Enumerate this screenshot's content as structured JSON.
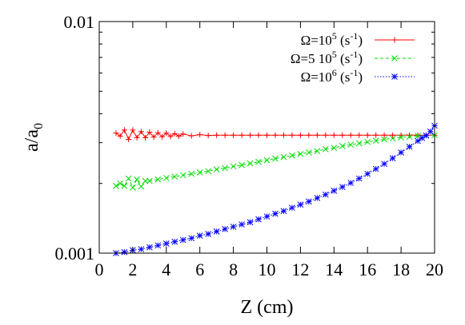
{
  "chart_data": {
    "type": "line",
    "title": "",
    "xlabel": "Z (cm)",
    "ylabel": {
      "main": "a/a",
      "sub": "0"
    },
    "xlim": [
      0,
      20
    ],
    "ylim": [
      0.001,
      0.01
    ],
    "yscale": "log",
    "grid": false,
    "legend_position": "top-right",
    "x_ticks": [
      0,
      2,
      4,
      6,
      8,
      10,
      12,
      14,
      16,
      18,
      20
    ],
    "x_tick_labels": [
      "0",
      "2",
      "4",
      "6",
      "8",
      "10",
      "12",
      "14",
      "16",
      "18",
      "20"
    ],
    "y_ticks": [
      0.001,
      0.01
    ],
    "y_tick_labels": [
      "0.001",
      "0.01"
    ],
    "series": [
      {
        "name": "Ω=10^5 (s^-1)",
        "legend": {
          "pre": "Ω=10",
          "sup1": "5",
          "mid": " (s",
          "sup2": "-1",
          "post": ")"
        },
        "color": "#ff0000",
        "marker": "plus",
        "line": "solid",
        "x": [
          1.0,
          1.25,
          1.5,
          1.75,
          2.0,
          2.25,
          2.5,
          2.75,
          3.0,
          3.25,
          3.5,
          3.75,
          4.0,
          4.25,
          4.5,
          4.75,
          5.0,
          5.5,
          6.0,
          6.5,
          7.0,
          7.5,
          8.0,
          8.5,
          9.0,
          9.5,
          10.0,
          10.5,
          11.0,
          11.5,
          12.0,
          12.5,
          13.0,
          13.5,
          14.0,
          14.5,
          15.0,
          15.5,
          16.0,
          16.5,
          17.0,
          17.5,
          18.0,
          18.5,
          19.0,
          19.5,
          20.0
        ],
        "y": [
          0.0033,
          0.0032,
          0.0034,
          0.0031,
          0.0034,
          0.00315,
          0.00335,
          0.00315,
          0.00333,
          0.00317,
          0.00331,
          0.00318,
          0.0033,
          0.00319,
          0.00328,
          0.0032,
          0.00327,
          0.00321,
          0.00325,
          0.00322,
          0.00323,
          0.00323,
          0.00323,
          0.00323,
          0.00323,
          0.00323,
          0.00323,
          0.00323,
          0.00323,
          0.00323,
          0.00323,
          0.00323,
          0.00323,
          0.00323,
          0.00323,
          0.00323,
          0.00323,
          0.00323,
          0.00323,
          0.00323,
          0.00323,
          0.00323,
          0.00323,
          0.00323,
          0.00323,
          0.00323,
          0.00323
        ]
      },
      {
        "name": "Ω=5 10^5 (s^-1)",
        "legend": {
          "pre": "Ω=5 10",
          "sup1": "5",
          "mid": " (s",
          "sup2": "-1",
          "post": ")"
        },
        "color": "#00dd00",
        "marker": "cross",
        "line": "dashed",
        "x": [
          1.0,
          1.25,
          1.5,
          1.75,
          2.0,
          2.25,
          2.5,
          2.75,
          3.0,
          3.5,
          4.0,
          4.5,
          5.0,
          5.5,
          6.0,
          6.5,
          7.0,
          7.5,
          8.0,
          8.5,
          9.0,
          9.5,
          10.0,
          10.5,
          11.0,
          11.5,
          12.0,
          12.5,
          13.0,
          13.5,
          14.0,
          14.5,
          15.0,
          15.5,
          16.0,
          16.5,
          17.0,
          17.5,
          18.0,
          18.5,
          19.0,
          19.5,
          20.0
        ],
        "y": [
          0.00195,
          0.002,
          0.00195,
          0.0021,
          0.00192,
          0.00208,
          0.00194,
          0.00205,
          0.00205,
          0.00208,
          0.00211,
          0.00214,
          0.00217,
          0.0022,
          0.00223,
          0.00226,
          0.0023,
          0.00233,
          0.00237,
          0.0024,
          0.00244,
          0.00248,
          0.00252,
          0.00256,
          0.0026,
          0.00264,
          0.00268,
          0.00272,
          0.00276,
          0.00281,
          0.00285,
          0.0029,
          0.00294,
          0.00298,
          0.00302,
          0.00306,
          0.0031,
          0.00313,
          0.00316,
          0.00318,
          0.00321,
          0.00322,
          0.00323
        ]
      },
      {
        "name": "Ω=10^6 (s^-1)",
        "legend": {
          "pre": "Ω=10",
          "sup1": "6",
          "mid": " (s",
          "sup2": "-1",
          "post": ")"
        },
        "color": "#0000ff",
        "marker": "star",
        "line": "dotted",
        "x": [
          1.0,
          1.5,
          2.0,
          2.5,
          3.0,
          3.5,
          4.0,
          4.5,
          5.0,
          5.5,
          6.0,
          6.5,
          7.0,
          7.5,
          8.0,
          8.5,
          9.0,
          9.5,
          10.0,
          10.5,
          11.0,
          11.5,
          12.0,
          12.5,
          13.0,
          13.5,
          14.0,
          14.5,
          15.0,
          15.5,
          16.0,
          16.5,
          17.0,
          17.5,
          18.0,
          18.5,
          19.0,
          19.25,
          19.5,
          19.75,
          20.0
        ],
        "y": [
          0.001,
          0.00101,
          0.00103,
          0.00104,
          0.00106,
          0.00108,
          0.0011,
          0.00112,
          0.00114,
          0.00116,
          0.00119,
          0.00121,
          0.00124,
          0.00127,
          0.0013,
          0.00133,
          0.00136,
          0.0014,
          0.00144,
          0.00148,
          0.00152,
          0.00157,
          0.00162,
          0.00167,
          0.00173,
          0.00179,
          0.00186,
          0.00193,
          0.00201,
          0.0021,
          0.0022,
          0.00231,
          0.00243,
          0.00257,
          0.00272,
          0.00288,
          0.00305,
          0.00314,
          0.00322,
          0.00335,
          0.00355
        ]
      }
    ]
  }
}
